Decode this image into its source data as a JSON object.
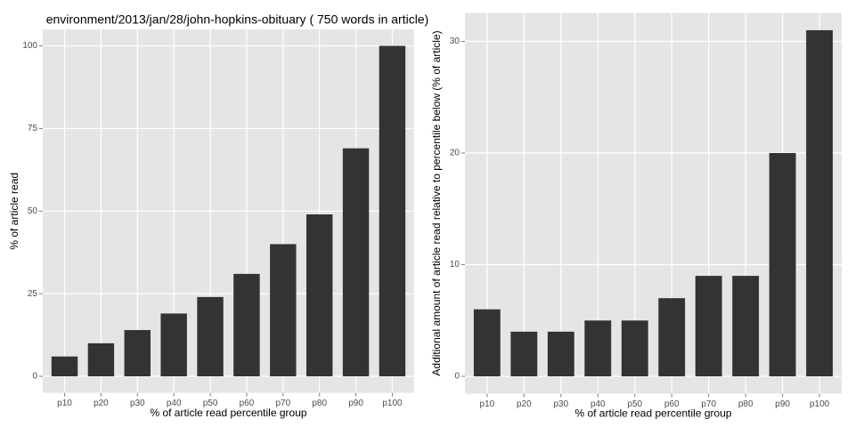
{
  "chart_data": [
    {
      "type": "bar",
      "title": "environment/2013/jan/28/john-hopkins-obituary ( 750 words in article)",
      "x_label": "% of article read percentile group",
      "y_label": "% of article read",
      "categories": [
        "p10",
        "p20",
        "p30",
        "p40",
        "p50",
        "p60",
        "p70",
        "p80",
        "p90",
        "p100"
      ],
      "values": [
        6,
        10,
        14,
        19,
        24,
        31,
        40,
        49,
        69,
        100
      ],
      "color": "#333333",
      "ylim": [
        -5,
        105
      ],
      "yticks": [
        0,
        25,
        50,
        75,
        100
      ],
      "grid": true
    },
    {
      "type": "bar",
      "x_label": "% of article read percentile group",
      "y_label": "Additional amount of article read relative to percentile below (% of article)",
      "categories": [
        "p10",
        "p20",
        "p30",
        "p40",
        "p50",
        "p60",
        "p70",
        "p80",
        "p90",
        "p100"
      ],
      "values": [
        6,
        4,
        4,
        5,
        5,
        7,
        9,
        9,
        20,
        31
      ],
      "color": "#333333",
      "ylim": [
        -1.55,
        32.55
      ],
      "yticks": [
        0,
        10,
        20,
        30
      ],
      "grid": true
    }
  ]
}
